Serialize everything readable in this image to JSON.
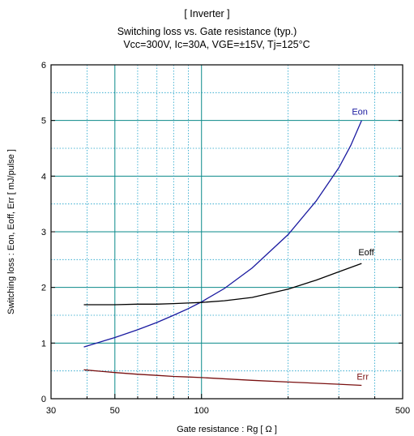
{
  "chart_data": {
    "type": "line",
    "title": "[ Inverter ]",
    "subtitle": "Switching loss  vs.  Gate resistance (typ.)",
    "conditions": "Vcc=300V, Ic=30A, VGE=±15V, Tj=125°C",
    "xlabel": "Gate resistance  :  Rg  [    Ω ]",
    "ylabel": "Switching loss  :  Eon, Eoff, Err  [  mJ/pulse ]",
    "x_scale": "log",
    "xlim": [
      30,
      500
    ],
    "ylim": [
      0,
      6
    ],
    "x_ticks": [
      30,
      50,
      100,
      500
    ],
    "x_tick_labels": [
      "30",
      "50",
      "100",
      "500"
    ],
    "x_minor_grid": [
      40,
      60,
      70,
      80,
      90,
      200,
      300,
      400
    ],
    "y_ticks": [
      0,
      1,
      2,
      3,
      4,
      5,
      6
    ],
    "y_tick_labels": [
      "0",
      "1",
      "2",
      "3",
      "4",
      "5",
      "6"
    ],
    "grid": true,
    "series": [
      {
        "name": "Eon",
        "color": "#1a1aa0",
        "points": [
          [
            39,
            0.93
          ],
          [
            50,
            1.1
          ],
          [
            60,
            1.24
          ],
          [
            70,
            1.37
          ],
          [
            80,
            1.5
          ],
          [
            90,
            1.62
          ],
          [
            100,
            1.74
          ],
          [
            120,
            1.98
          ],
          [
            150,
            2.35
          ],
          [
            200,
            2.95
          ],
          [
            250,
            3.55
          ],
          [
            300,
            4.15
          ],
          [
            330,
            4.55
          ],
          [
            360,
            5.0
          ]
        ]
      },
      {
        "name": "Eoff",
        "color": "#000000",
        "points": [
          [
            39,
            1.69
          ],
          [
            50,
            1.69
          ],
          [
            60,
            1.7
          ],
          [
            70,
            1.7
          ],
          [
            80,
            1.71
          ],
          [
            90,
            1.72
          ],
          [
            100,
            1.73
          ],
          [
            120,
            1.76
          ],
          [
            150,
            1.82
          ],
          [
            200,
            1.97
          ],
          [
            250,
            2.13
          ],
          [
            300,
            2.28
          ],
          [
            360,
            2.43
          ]
        ]
      },
      {
        "name": "Err",
        "color": "#7a1010",
        "points": [
          [
            39,
            0.52
          ],
          [
            50,
            0.47
          ],
          [
            60,
            0.44
          ],
          [
            70,
            0.42
          ],
          [
            80,
            0.4
          ],
          [
            90,
            0.39
          ],
          [
            100,
            0.38
          ],
          [
            150,
            0.33
          ],
          [
            200,
            0.3
          ],
          [
            300,
            0.26
          ],
          [
            360,
            0.24
          ]
        ]
      }
    ],
    "colors": {
      "grid_major": "#0a8a8a",
      "grid_minor": "#1aa0c8",
      "frame": "#000000"
    }
  }
}
